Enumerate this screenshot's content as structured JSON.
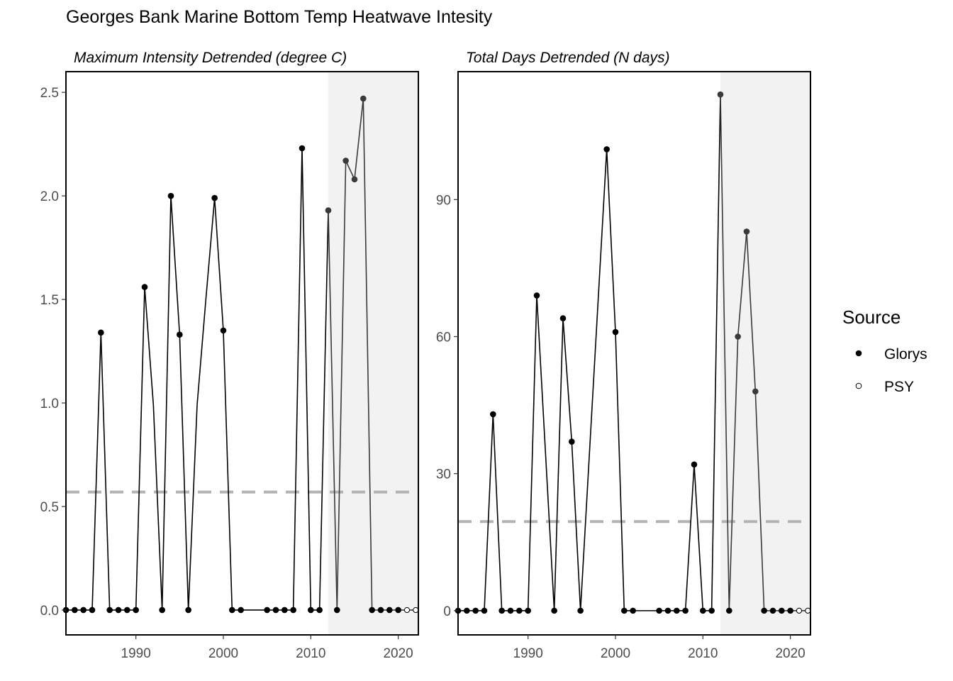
{
  "figure": {
    "title": "Georges Bank Marine Bottom Temp Heatwave Intesity"
  },
  "legend": {
    "title": "Source",
    "entries": [
      {
        "label": "Glorys",
        "marker": "filled-circle",
        "color": "#000000"
      },
      {
        "label": "PSY",
        "marker": "open-circle",
        "color": "#000000"
      }
    ]
  },
  "colors": {
    "line": "#000000",
    "recent_line": "#3a3a3a",
    "reference_line": "#b3b3b3",
    "shaded_region": "#f2f2f2"
  },
  "chart_data": [
    {
      "type": "line",
      "title": "Maximum Intensity Detrended (degree C)",
      "xlabel": "",
      "ylabel": "",
      "xlim": [
        1982,
        2022.3
      ],
      "ylim": [
        -0.12,
        2.6
      ],
      "xticks": [
        1990,
        2000,
        2010,
        2020
      ],
      "yticks": [
        0.0,
        0.5,
        1.0,
        1.5,
        2.0,
        2.5
      ],
      "ytick_labels": [
        "0.0",
        "0.5",
        "1.0",
        "1.5",
        "2.0",
        "2.5"
      ],
      "reference_line": 0.57,
      "shaded_x": [
        2012,
        2022.3
      ],
      "grid": false,
      "series": [
        {
          "x": [
            1982,
            1983,
            1984,
            1985,
            1986,
            1987,
            1988,
            1989,
            1990,
            1991,
            1992,
            1993,
            1994,
            1995,
            1996,
            1997,
            1998,
            1999,
            2000,
            2001,
            2002,
            2005,
            2006,
            2007,
            2008,
            2009,
            2010,
            2011,
            2012,
            2013,
            2014,
            2015,
            2016,
            2017,
            2018,
            2019,
            2020,
            2021,
            2022
          ],
          "y": [
            0,
            0,
            0,
            0,
            1.34,
            0,
            0,
            0,
            0,
            1.56,
            0.99,
            0,
            2.0,
            1.33,
            0,
            0.99,
            1.5,
            1.99,
            1.35,
            0,
            0,
            0,
            0,
            0,
            0,
            2.23,
            0,
            0,
            1.93,
            0,
            2.17,
            2.08,
            2.47,
            0,
            0,
            0,
            0,
            0,
            0
          ],
          "source": [
            "Glorys",
            "Glorys",
            "Glorys",
            "Glorys",
            "Glorys",
            "Glorys",
            "Glorys",
            "Glorys",
            "Glorys",
            "Glorys",
            "none",
            "Glorys",
            "Glorys",
            "Glorys",
            "Glorys",
            "none",
            "none",
            "Glorys",
            "Glorys",
            "Glorys",
            "Glorys",
            "Glorys",
            "Glorys",
            "Glorys",
            "Glorys",
            "Glorys",
            "Glorys",
            "Glorys",
            "Glorys",
            "Glorys",
            "Glorys",
            "Glorys",
            "Glorys",
            "Glorys",
            "Glorys",
            "Glorys",
            "Glorys",
            "PSY",
            "PSY"
          ]
        }
      ]
    },
    {
      "type": "line",
      "title": "Total Days Detrended (N days)",
      "xlabel": "",
      "ylabel": "",
      "xlim": [
        1982,
        2022.3
      ],
      "ylim": [
        -5.3,
        118
      ],
      "xticks": [
        1990,
        2000,
        2010,
        2020
      ],
      "yticks": [
        0,
        30,
        60,
        90
      ],
      "ytick_labels": [
        "0",
        "30",
        "60",
        "90"
      ],
      "reference_line": 19.5,
      "shaded_x": [
        2012,
        2022.3
      ],
      "grid": false,
      "series": [
        {
          "x": [
            1982,
            1983,
            1984,
            1985,
            1986,
            1987,
            1988,
            1989,
            1990,
            1991,
            1993,
            1994,
            1995,
            1996,
            1999,
            2000,
            2001,
            2002,
            2005,
            2006,
            2007,
            2008,
            2009,
            2010,
            2011,
            2012,
            2013,
            2014,
            2015,
            2016,
            2017,
            2018,
            2019,
            2020,
            2021,
            2022
          ],
          "y": [
            0,
            0,
            0,
            0,
            43,
            0,
            0,
            0,
            0,
            69,
            0,
            64,
            37,
            0,
            101,
            61,
            0,
            0,
            0,
            0,
            0,
            0,
            32,
            0,
            0,
            113,
            0,
            60,
            83,
            48,
            0,
            0,
            0,
            0,
            0,
            0
          ],
          "source": [
            "Glorys",
            "Glorys",
            "Glorys",
            "Glorys",
            "Glorys",
            "Glorys",
            "Glorys",
            "Glorys",
            "Glorys",
            "Glorys",
            "Glorys",
            "Glorys",
            "Glorys",
            "Glorys",
            "Glorys",
            "Glorys",
            "Glorys",
            "Glorys",
            "Glorys",
            "Glorys",
            "Glorys",
            "Glorys",
            "Glorys",
            "Glorys",
            "Glorys",
            "Glorys",
            "Glorys",
            "Glorys",
            "Glorys",
            "Glorys",
            "Glorys",
            "Glorys",
            "Glorys",
            "Glorys",
            "PSY",
            "PSY"
          ]
        }
      ]
    }
  ]
}
